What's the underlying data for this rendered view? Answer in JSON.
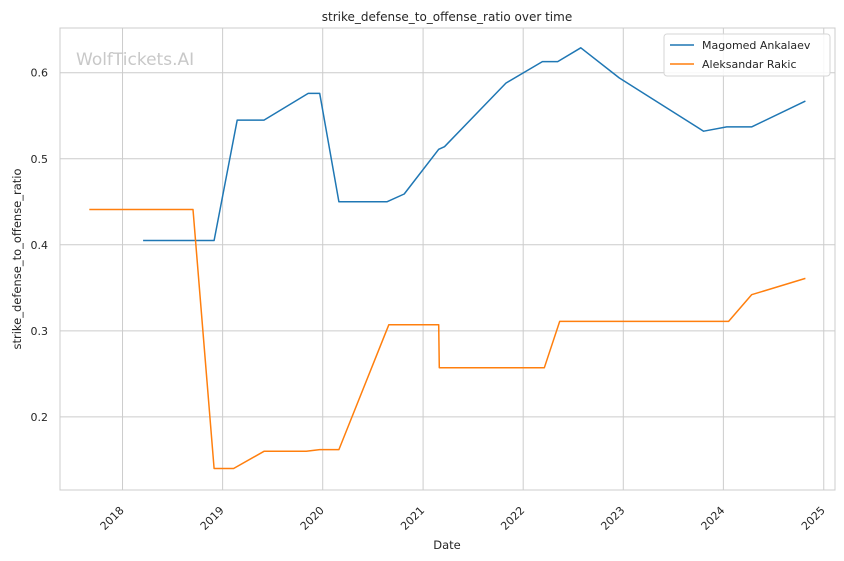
{
  "chart_data": {
    "type": "line",
    "title": "strike_defense_to_offense_ratio over time",
    "xlabel": "Date",
    "ylabel": "strike_defense_to_offense_ratio",
    "watermark": "WolfTickets.AI",
    "x_ticks": [
      "2018",
      "2019",
      "2020",
      "2021",
      "2022",
      "2023",
      "2024",
      "2025"
    ],
    "y_ticks": [
      "0.2",
      "0.3",
      "0.4",
      "0.5",
      "0.6"
    ],
    "xlim": [
      "2017-05-18",
      "2025-02-11"
    ],
    "ylim": [
      0.115,
      0.652
    ],
    "grid": true,
    "legend_position": "top-right",
    "series": [
      {
        "name": "Magomed Ankalaev",
        "color": "#1f77b4",
        "points": [
          [
            "2018-03-17",
            0.405
          ],
          [
            "2018-12-01",
            0.405
          ],
          [
            "2019-02-23",
            0.545
          ],
          [
            "2019-06-01",
            0.545
          ],
          [
            "2019-11-09",
            0.576
          ],
          [
            "2019-12-21",
            0.576
          ],
          [
            "2020-02-29",
            0.45
          ],
          [
            "2020-08-22",
            0.45
          ],
          [
            "2020-10-24",
            0.459
          ],
          [
            "2021-02-27",
            0.511
          ],
          [
            "2021-03-20",
            0.514
          ],
          [
            "2021-10-30",
            0.588
          ],
          [
            "2022-03-12",
            0.613
          ],
          [
            "2022-05-07",
            0.613
          ],
          [
            "2022-07-30",
            0.629
          ],
          [
            "2022-12-17",
            0.594
          ],
          [
            "2023-10-21",
            0.532
          ],
          [
            "2024-01-13",
            0.537
          ],
          [
            "2024-04-13",
            0.537
          ],
          [
            "2024-10-26",
            0.567
          ]
        ]
      },
      {
        "name": "Aleksandar Rakic",
        "color": "#ff7f0e",
        "points": [
          [
            "2017-09-02",
            0.441
          ],
          [
            "2018-09-15",
            0.441
          ],
          [
            "2018-12-01",
            0.14
          ],
          [
            "2019-02-10",
            0.14
          ],
          [
            "2019-06-01",
            0.16
          ],
          [
            "2019-11-02",
            0.16
          ],
          [
            "2019-12-21",
            0.162
          ],
          [
            "2020-02-29",
            0.162
          ],
          [
            "2020-08-29",
            0.307
          ],
          [
            "2021-02-27",
            0.307
          ],
          [
            "2021-03-01",
            0.257
          ],
          [
            "2022-03-19",
            0.257
          ],
          [
            "2022-05-14",
            0.311
          ],
          [
            "2024-01-20",
            0.311
          ],
          [
            "2024-04-13",
            0.342
          ],
          [
            "2024-10-26",
            0.361
          ]
        ]
      }
    ]
  }
}
